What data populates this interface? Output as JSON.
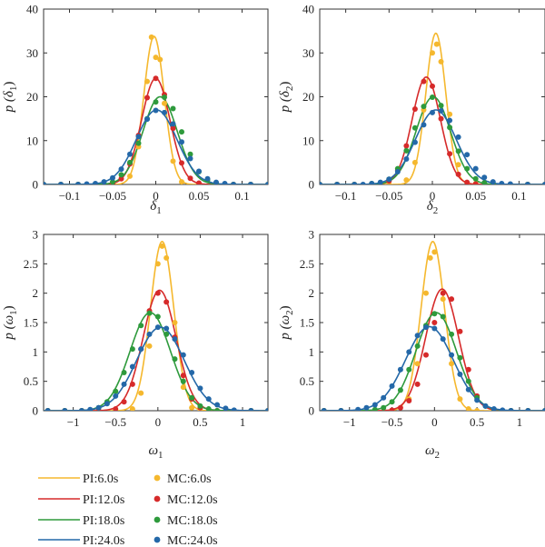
{
  "chart_data": [
    {
      "type": "line",
      "xlabel": "δ",
      "xlabel_sub": "1",
      "ylabel": "p (δ",
      "ylabel_sub": "1",
      "ylabel_close": ")",
      "xlim": [
        -0.13,
        0.13
      ],
      "ylim": [
        0,
        40
      ],
      "xticks": [
        -0.1,
        -0.05,
        0,
        0.05,
        0.1
      ],
      "xtick_labels": [
        "−0.1",
        "−0.05",
        "0",
        "0.05",
        "0.1"
      ],
      "yticks": [
        0,
        10,
        20,
        30,
        40
      ],
      "ytick_labels": [
        "0",
        "10",
        "20",
        "30",
        "40"
      ],
      "series": [
        {
          "name": "PI:6.0s",
          "kind": "curve",
          "mean": -0.002,
          "sd": 0.0118,
          "peak": 33.8
        },
        {
          "name": "PI:12.0s",
          "kind": "curve",
          "mean": 0.0,
          "sd": 0.0165,
          "peak": 24.2
        },
        {
          "name": "PI:18.0s",
          "kind": "curve",
          "mean": 0.005,
          "sd": 0.0199,
          "peak": 20.0
        },
        {
          "name": "PI:24.0s",
          "kind": "curve",
          "mean": 0.001,
          "sd": 0.0235,
          "peak": 17.0
        },
        {
          "name": "MC:6.0s",
          "kind": "points",
          "x": [
            -0.13,
            -0.11,
            -0.09,
            -0.07,
            -0.05,
            -0.03,
            -0.02,
            -0.01,
            -0.005,
            0,
            0.005,
            0.01,
            0.02,
            0.03,
            0.05,
            0.07,
            0.09,
            0.11,
            0.13
          ],
          "y": [
            0,
            0,
            0,
            0,
            0.1,
            1.9,
            8.6,
            23.5,
            33.6,
            29.0,
            28.5,
            18.5,
            5.3,
            0.6,
            0,
            0,
            0,
            0,
            0
          ]
        },
        {
          "name": "MC:12.0s",
          "kind": "points",
          "x": [
            -0.13,
            -0.11,
            -0.09,
            -0.07,
            -0.05,
            -0.04,
            -0.03,
            -0.02,
            -0.01,
            0,
            0.01,
            0.02,
            0.03,
            0.04,
            0.05,
            0.07,
            0.09,
            0.11,
            0.13
          ],
          "y": [
            0,
            0,
            0,
            0,
            0.2,
            1.3,
            4.7,
            11.2,
            19.8,
            24.2,
            20.5,
            12.8,
            4.9,
            1.4,
            0.3,
            0,
            0,
            0,
            0
          ]
        },
        {
          "name": "MC:18.0s",
          "kind": "points",
          "x": [
            -0.13,
            -0.11,
            -0.09,
            -0.07,
            -0.05,
            -0.04,
            -0.03,
            -0.02,
            -0.01,
            0,
            0.01,
            0.02,
            0.03,
            0.04,
            0.05,
            0.06,
            0.07,
            0.09,
            0.11,
            0.13
          ],
          "y": [
            0,
            0,
            0,
            0.1,
            0.6,
            2.2,
            5.0,
            9.4,
            15.0,
            18.8,
            19.9,
            17.3,
            12.0,
            6.9,
            2.9,
            1.0,
            0.3,
            0,
            0,
            0
          ]
        },
        {
          "name": "MC:24.0s",
          "kind": "points",
          "x": [
            -0.13,
            -0.11,
            -0.09,
            -0.08,
            -0.07,
            -0.06,
            -0.05,
            -0.04,
            -0.03,
            -0.02,
            -0.01,
            0,
            0.01,
            0.02,
            0.03,
            0.04,
            0.05,
            0.06,
            0.07,
            0.08,
            0.09,
            0.11,
            0.13
          ],
          "y": [
            0,
            0,
            0,
            0.1,
            0.2,
            0.6,
            1.5,
            3.5,
            6.9,
            10.9,
            14.9,
            16.9,
            16.4,
            13.8,
            9.7,
            5.9,
            3.0,
            1.3,
            0.5,
            0.2,
            0,
            0,
            0
          ]
        }
      ]
    },
    {
      "type": "line",
      "xlabel": "δ",
      "xlabel_sub": "2",
      "ylabel": "p (δ",
      "ylabel_sub": "2",
      "ylabel_close": ")",
      "xlim": [
        -0.13,
        0.13
      ],
      "ylim": [
        0,
        40
      ],
      "xticks": [
        -0.1,
        -0.05,
        0,
        0.05,
        0.1
      ],
      "xtick_labels": [
        "−0.1",
        "−0.05",
        "0",
        "0.05",
        "0.1"
      ],
      "yticks": [
        0,
        10,
        20,
        30,
        40
      ],
      "ytick_labels": [
        "0",
        "10",
        "20",
        "30",
        "40"
      ],
      "series": [
        {
          "name": "PI:6.0s",
          "kind": "curve",
          "mean": 0.004,
          "sd": 0.0115,
          "peak": 34.5
        },
        {
          "name": "PI:12.0s",
          "kind": "curve",
          "mean": -0.007,
          "sd": 0.0163,
          "peak": 24.5
        },
        {
          "name": "PI:18.0s",
          "kind": "curve",
          "mean": 0.001,
          "sd": 0.0199,
          "peak": 20.0
        },
        {
          "name": "PI:24.0s",
          "kind": "curve",
          "mean": 0.004,
          "sd": 0.0235,
          "peak": 17.0
        },
        {
          "name": "MC:6.0s",
          "kind": "points",
          "x": [
            -0.13,
            -0.11,
            -0.09,
            -0.07,
            -0.05,
            -0.03,
            -0.02,
            -0.01,
            0,
            0.005,
            0.01,
            0.02,
            0.03,
            0.05,
            0.07,
            0.09,
            0.11,
            0.13
          ],
          "y": [
            0,
            0,
            0,
            0,
            0,
            1.0,
            5.0,
            17.0,
            30.0,
            32.0,
            28.0,
            16.0,
            4.5,
            0.2,
            0,
            0,
            0,
            0
          ]
        },
        {
          "name": "MC:12.0s",
          "kind": "points",
          "x": [
            -0.13,
            -0.11,
            -0.09,
            -0.07,
            -0.05,
            -0.04,
            -0.03,
            -0.02,
            -0.01,
            0,
            0.01,
            0.02,
            0.03,
            0.04,
            0.05,
            0.07,
            0.09,
            0.11,
            0.13
          ],
          "y": [
            0,
            0,
            0,
            0,
            0.8,
            3.2,
            8.8,
            17.2,
            23.5,
            22.4,
            15.0,
            7.0,
            2.3,
            0.5,
            0.1,
            0,
            0,
            0,
            0
          ]
        },
        {
          "name": "MC:18.0s",
          "kind": "points",
          "x": [
            -0.13,
            -0.11,
            -0.09,
            -0.07,
            -0.05,
            -0.04,
            -0.03,
            -0.02,
            -0.01,
            0,
            0.01,
            0.02,
            0.03,
            0.04,
            0.05,
            0.06,
            0.07,
            0.09,
            0.11,
            0.13
          ],
          "y": [
            0,
            0,
            0,
            0.2,
            1.2,
            3.6,
            7.7,
            12.9,
            17.8,
            19.9,
            18.0,
            13.0,
            7.6,
            3.6,
            1.3,
            0.4,
            0.1,
            0,
            0,
            0
          ]
        },
        {
          "name": "MC:24.0s",
          "kind": "points",
          "x": [
            -0.13,
            -0.11,
            -0.09,
            -0.08,
            -0.07,
            -0.06,
            -0.05,
            -0.04,
            -0.03,
            -0.02,
            -0.01,
            0,
            0.01,
            0.02,
            0.03,
            0.04,
            0.05,
            0.06,
            0.07,
            0.08,
            0.09,
            0.11,
            0.13
          ],
          "y": [
            0,
            0,
            0,
            0,
            0.2,
            0.5,
            1.2,
            2.9,
            5.8,
            9.6,
            13.6,
            16.4,
            16.8,
            14.6,
            10.8,
            6.8,
            3.6,
            1.6,
            0.6,
            0.2,
            0.1,
            0,
            0
          ]
        }
      ]
    },
    {
      "type": "line",
      "xlabel": "ω",
      "xlabel_sub": "1",
      "ylabel": "p (ω",
      "ylabel_sub": "1",
      "ylabel_close": ")",
      "xlim": [
        -1.35,
        1.3
      ],
      "ylim": [
        0,
        3
      ],
      "xticks": [
        -1,
        -0.5,
        0,
        0.5,
        1
      ],
      "xtick_labels": [
        "−1",
        "−0.5",
        "0",
        "0.5",
        "1"
      ],
      "yticks": [
        0,
        0.5,
        1,
        1.5,
        2,
        2.5,
        3
      ],
      "ytick_labels": [
        "0",
        "0.5",
        "1",
        "1.5",
        "2",
        "2.5",
        "3"
      ],
      "series": [
        {
          "name": "PI:6.0s",
          "kind": "curve",
          "mean": 0.05,
          "sd": 0.138,
          "peak": 2.88
        },
        {
          "name": "PI:12.0s",
          "kind": "curve",
          "mean": 0.02,
          "sd": 0.195,
          "peak": 2.05
        },
        {
          "name": "PI:18.0s",
          "kind": "curve",
          "mean": -0.09,
          "sd": 0.239,
          "peak": 1.67
        },
        {
          "name": "PI:24.0s",
          "kind": "curve",
          "mean": 0.03,
          "sd": 0.28,
          "peak": 1.42
        },
        {
          "name": "MC:6.0s",
          "kind": "points",
          "x": [
            -1.3,
            -1.1,
            -0.9,
            -0.7,
            -0.5,
            -0.3,
            -0.2,
            -0.1,
            0,
            0.05,
            0.1,
            0.2,
            0.3,
            0.4,
            0.5,
            0.7,
            0.9,
            1.1,
            1.3
          ],
          "y": [
            0,
            0,
            0,
            0,
            0,
            0.03,
            0.3,
            1.1,
            2.5,
            2.8,
            2.6,
            1.5,
            0.4,
            0.05,
            0,
            0,
            0,
            0,
            0
          ]
        },
        {
          "name": "MC:12.0s",
          "kind": "points",
          "x": [
            -1.3,
            -1.1,
            -0.9,
            -0.7,
            -0.5,
            -0.4,
            -0.3,
            -0.2,
            -0.1,
            0,
            0.1,
            0.2,
            0.3,
            0.4,
            0.5,
            0.7,
            0.9,
            1.1,
            1.3
          ],
          "y": [
            0,
            0,
            0,
            0,
            0.03,
            0.15,
            0.45,
            1.05,
            1.7,
            2.0,
            1.85,
            1.25,
            0.6,
            0.2,
            0.05,
            0,
            0,
            0,
            0
          ]
        },
        {
          "name": "MC:18.0s",
          "kind": "points",
          "x": [
            -1.3,
            -1.1,
            -0.9,
            -0.7,
            -0.6,
            -0.5,
            -0.4,
            -0.3,
            -0.2,
            -0.1,
            0,
            0.1,
            0.2,
            0.3,
            0.4,
            0.5,
            0.6,
            0.7,
            0.9,
            1.1,
            1.3
          ],
          "y": [
            0,
            0,
            0,
            0.05,
            0.15,
            0.33,
            0.65,
            1.05,
            1.45,
            1.66,
            1.6,
            1.3,
            0.88,
            0.5,
            0.22,
            0.08,
            0.03,
            0,
            0,
            0,
            0
          ]
        },
        {
          "name": "MC:24.0s",
          "kind": "points",
          "x": [
            -1.3,
            -1.1,
            -0.9,
            -0.8,
            -0.7,
            -0.6,
            -0.5,
            -0.4,
            -0.3,
            -0.2,
            -0.1,
            0,
            0.1,
            0.2,
            0.3,
            0.4,
            0.5,
            0.6,
            0.7,
            0.8,
            0.9,
            1.1,
            1.3
          ],
          "y": [
            0,
            0,
            0,
            0.02,
            0.05,
            0.12,
            0.25,
            0.45,
            0.75,
            1.05,
            1.3,
            1.42,
            1.4,
            1.22,
            0.95,
            0.65,
            0.38,
            0.2,
            0.1,
            0.04,
            0.01,
            0,
            0
          ]
        }
      ]
    },
    {
      "type": "line",
      "xlabel": "ω",
      "xlabel_sub": "2",
      "ylabel": "p (ω",
      "ylabel_sub": "2",
      "ylabel_close": ")",
      "xlim": [
        -1.35,
        1.3
      ],
      "ylim": [
        0,
        3
      ],
      "xticks": [
        -1,
        -0.5,
        0,
        0.5,
        1
      ],
      "xtick_labels": [
        "−1",
        "−0.5",
        "0",
        "0.5",
        "1"
      ],
      "yticks": [
        0,
        0.5,
        1,
        1.5,
        2,
        2.5,
        3
      ],
      "ytick_labels": [
        "0",
        "0.5",
        "1",
        "1.5",
        "2",
        "2.5",
        "3"
      ],
      "series": [
        {
          "name": "PI:6.0s",
          "kind": "curve",
          "mean": -0.02,
          "sd": 0.138,
          "peak": 2.88
        },
        {
          "name": "PI:12.0s",
          "kind": "curve",
          "mean": 0.09,
          "sd": 0.193,
          "peak": 2.07
        },
        {
          "name": "PI:18.0s",
          "kind": "curve",
          "mean": 0.02,
          "sd": 0.239,
          "peak": 1.67
        },
        {
          "name": "PI:24.0s",
          "kind": "curve",
          "mean": -0.06,
          "sd": 0.28,
          "peak": 1.43
        },
        {
          "name": "MC:6.0s",
          "kind": "points",
          "x": [
            -1.3,
            -1.1,
            -0.9,
            -0.7,
            -0.5,
            -0.3,
            -0.2,
            -0.1,
            -0.05,
            0,
            0.1,
            0.2,
            0.3,
            0.4,
            0.5,
            0.7,
            0.9,
            1.1,
            1.3
          ],
          "y": [
            0,
            0,
            0,
            0,
            0,
            0.2,
            0.8,
            2.0,
            2.6,
            2.7,
            1.9,
            0.8,
            0.2,
            0.03,
            0,
            0,
            0,
            0,
            0
          ]
        },
        {
          "name": "MC:12.0s",
          "kind": "points",
          "x": [
            -1.3,
            -1.1,
            -0.9,
            -0.7,
            -0.5,
            -0.4,
            -0.3,
            -0.2,
            -0.1,
            0,
            0.1,
            0.2,
            0.3,
            0.4,
            0.5,
            0.7,
            0.9,
            1.1,
            1.3
          ],
          "y": [
            0,
            0,
            0,
            0,
            0.01,
            0.05,
            0.17,
            0.45,
            0.95,
            1.5,
            2.0,
            1.9,
            1.35,
            0.7,
            0.25,
            0.01,
            0,
            0,
            0
          ]
        },
        {
          "name": "MC:18.0s",
          "kind": "points",
          "x": [
            -1.3,
            -1.1,
            -0.9,
            -0.7,
            -0.6,
            -0.5,
            -0.4,
            -0.3,
            -0.2,
            -0.1,
            0,
            0.1,
            0.2,
            0.3,
            0.4,
            0.5,
            0.6,
            0.7,
            0.9,
            1.1,
            1.3
          ],
          "y": [
            0,
            0,
            0,
            0.02,
            0.05,
            0.15,
            0.35,
            0.7,
            1.1,
            1.45,
            1.65,
            1.6,
            1.3,
            0.9,
            0.5,
            0.22,
            0.08,
            0.02,
            0,
            0,
            0
          ]
        },
        {
          "name": "MC:24.0s",
          "kind": "points",
          "x": [
            -1.3,
            -1.1,
            -0.9,
            -0.8,
            -0.7,
            -0.6,
            -0.5,
            -0.4,
            -0.3,
            -0.2,
            -0.1,
            0,
            0.1,
            0.2,
            0.3,
            0.4,
            0.5,
            0.6,
            0.7,
            0.8,
            0.9,
            1.1,
            1.3
          ],
          "y": [
            0,
            0,
            0.02,
            0.05,
            0.1,
            0.22,
            0.42,
            0.7,
            1.0,
            1.28,
            1.42,
            1.4,
            1.22,
            0.95,
            0.62,
            0.36,
            0.18,
            0.08,
            0.03,
            0.01,
            0,
            0,
            0
          ]
        }
      ]
    }
  ],
  "legend": {
    "lines": [
      {
        "label": "PI:6.0s",
        "color": "#f5b82e"
      },
      {
        "label": "PI:12.0s",
        "color": "#d62a2a"
      },
      {
        "label": "PI:18.0s",
        "color": "#2e9a3c"
      },
      {
        "label": "PI:24.0s",
        "color": "#2468a8"
      }
    ],
    "markers": [
      {
        "label": "MC:6.0s",
        "color": "#f5b82e"
      },
      {
        "label": "MC:12.0s",
        "color": "#d62a2a"
      },
      {
        "label": "MC:18.0s",
        "color": "#2e9a3c"
      },
      {
        "label": "MC:24.0s",
        "color": "#2468a8"
      }
    ]
  },
  "colors": {
    "PI:6.0s": "#f5b82e",
    "PI:12.0s": "#d62a2a",
    "PI:18.0s": "#2e9a3c",
    "PI:24.0s": "#2468a8",
    "MC:6.0s": "#f5b82e",
    "MC:12.0s": "#d62a2a",
    "MC:18.0s": "#2e9a3c",
    "MC:24.0s": "#2468a8"
  }
}
